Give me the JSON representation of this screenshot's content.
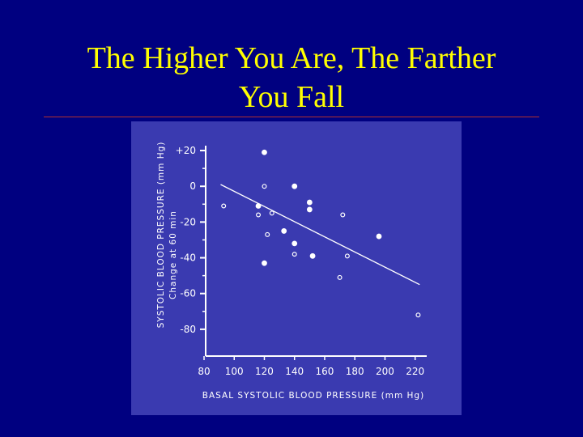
{
  "slide": {
    "title_line1": "The Higher You Are, The Farther",
    "title_line2": "You Fall"
  },
  "colors": {
    "background": "#000080",
    "title": "#ffff00",
    "rule": "#b03030",
    "panel": "#3a3ab0",
    "marks": "#ffffff"
  },
  "chart_data": {
    "type": "scatter",
    "xlabel": "BASAL SYSTOLIC BLOOD PRESSURE (mm Hg)",
    "ylabel": "SYSTOLIC BLOOD PRESSURE (mm Hg)",
    "ylabel2": "Change at 60 min",
    "x_ticks": [
      80,
      100,
      120,
      140,
      160,
      180,
      200,
      220
    ],
    "y_ticks": [
      "+20",
      "0",
      "-20",
      "-40",
      "-60",
      "-80"
    ],
    "y_tick_values": [
      20,
      0,
      -20,
      -40,
      -60,
      -80
    ],
    "xlim": [
      80,
      225
    ],
    "ylim": [
      -95,
      25
    ],
    "grid": false,
    "series": [
      {
        "marker": "filled",
        "points": [
          [
            120,
            19
          ],
          [
            140,
            0
          ],
          [
            150,
            -9
          ],
          [
            150,
            -13
          ],
          [
            116,
            -11
          ],
          [
            133,
            -25
          ],
          [
            140,
            -32
          ],
          [
            120,
            -43
          ],
          [
            152,
            -39
          ],
          [
            196,
            -28
          ]
        ]
      },
      {
        "marker": "open",
        "points": [
          [
            120,
            0
          ],
          [
            93,
            -11
          ],
          [
            116,
            -16
          ],
          [
            125,
            -15
          ],
          [
            122,
            -27
          ],
          [
            140,
            -38
          ],
          [
            172,
            -16
          ],
          [
            175,
            -39
          ],
          [
            170,
            -51
          ],
          [
            222,
            -72
          ]
        ]
      }
    ],
    "trendline": [
      [
        91,
        1
      ],
      [
        223,
        -55
      ]
    ]
  }
}
